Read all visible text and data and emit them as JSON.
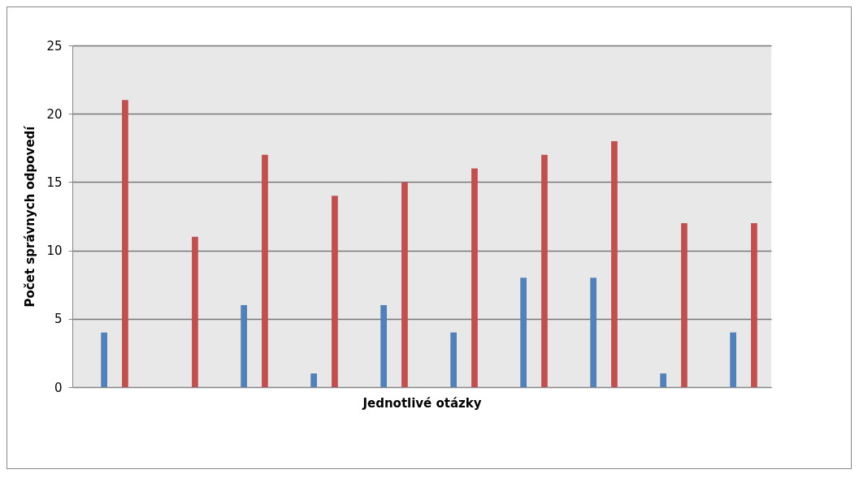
{
  "chart_data": {
    "type": "bar",
    "xlabel": "Jednotlivé otázky",
    "ylabel": "Počet správnych odpovedí",
    "categories": [
      null,
      null,
      null,
      null,
      null,
      null,
      null,
      null,
      null,
      null
    ],
    "series": [
      {
        "color": "#4f81bd",
        "values": [
          4,
          0,
          6,
          1,
          6,
          4,
          8,
          8,
          1,
          4
        ]
      },
      {
        "color": "#c0504d",
        "values": [
          21,
          11,
          17,
          14,
          15,
          16,
          17,
          18,
          12,
          12
        ]
      }
    ],
    "ylim": [
      0,
      25
    ],
    "yticks": [
      0,
      5,
      10,
      15,
      20,
      25
    ],
    "grid": "y"
  }
}
